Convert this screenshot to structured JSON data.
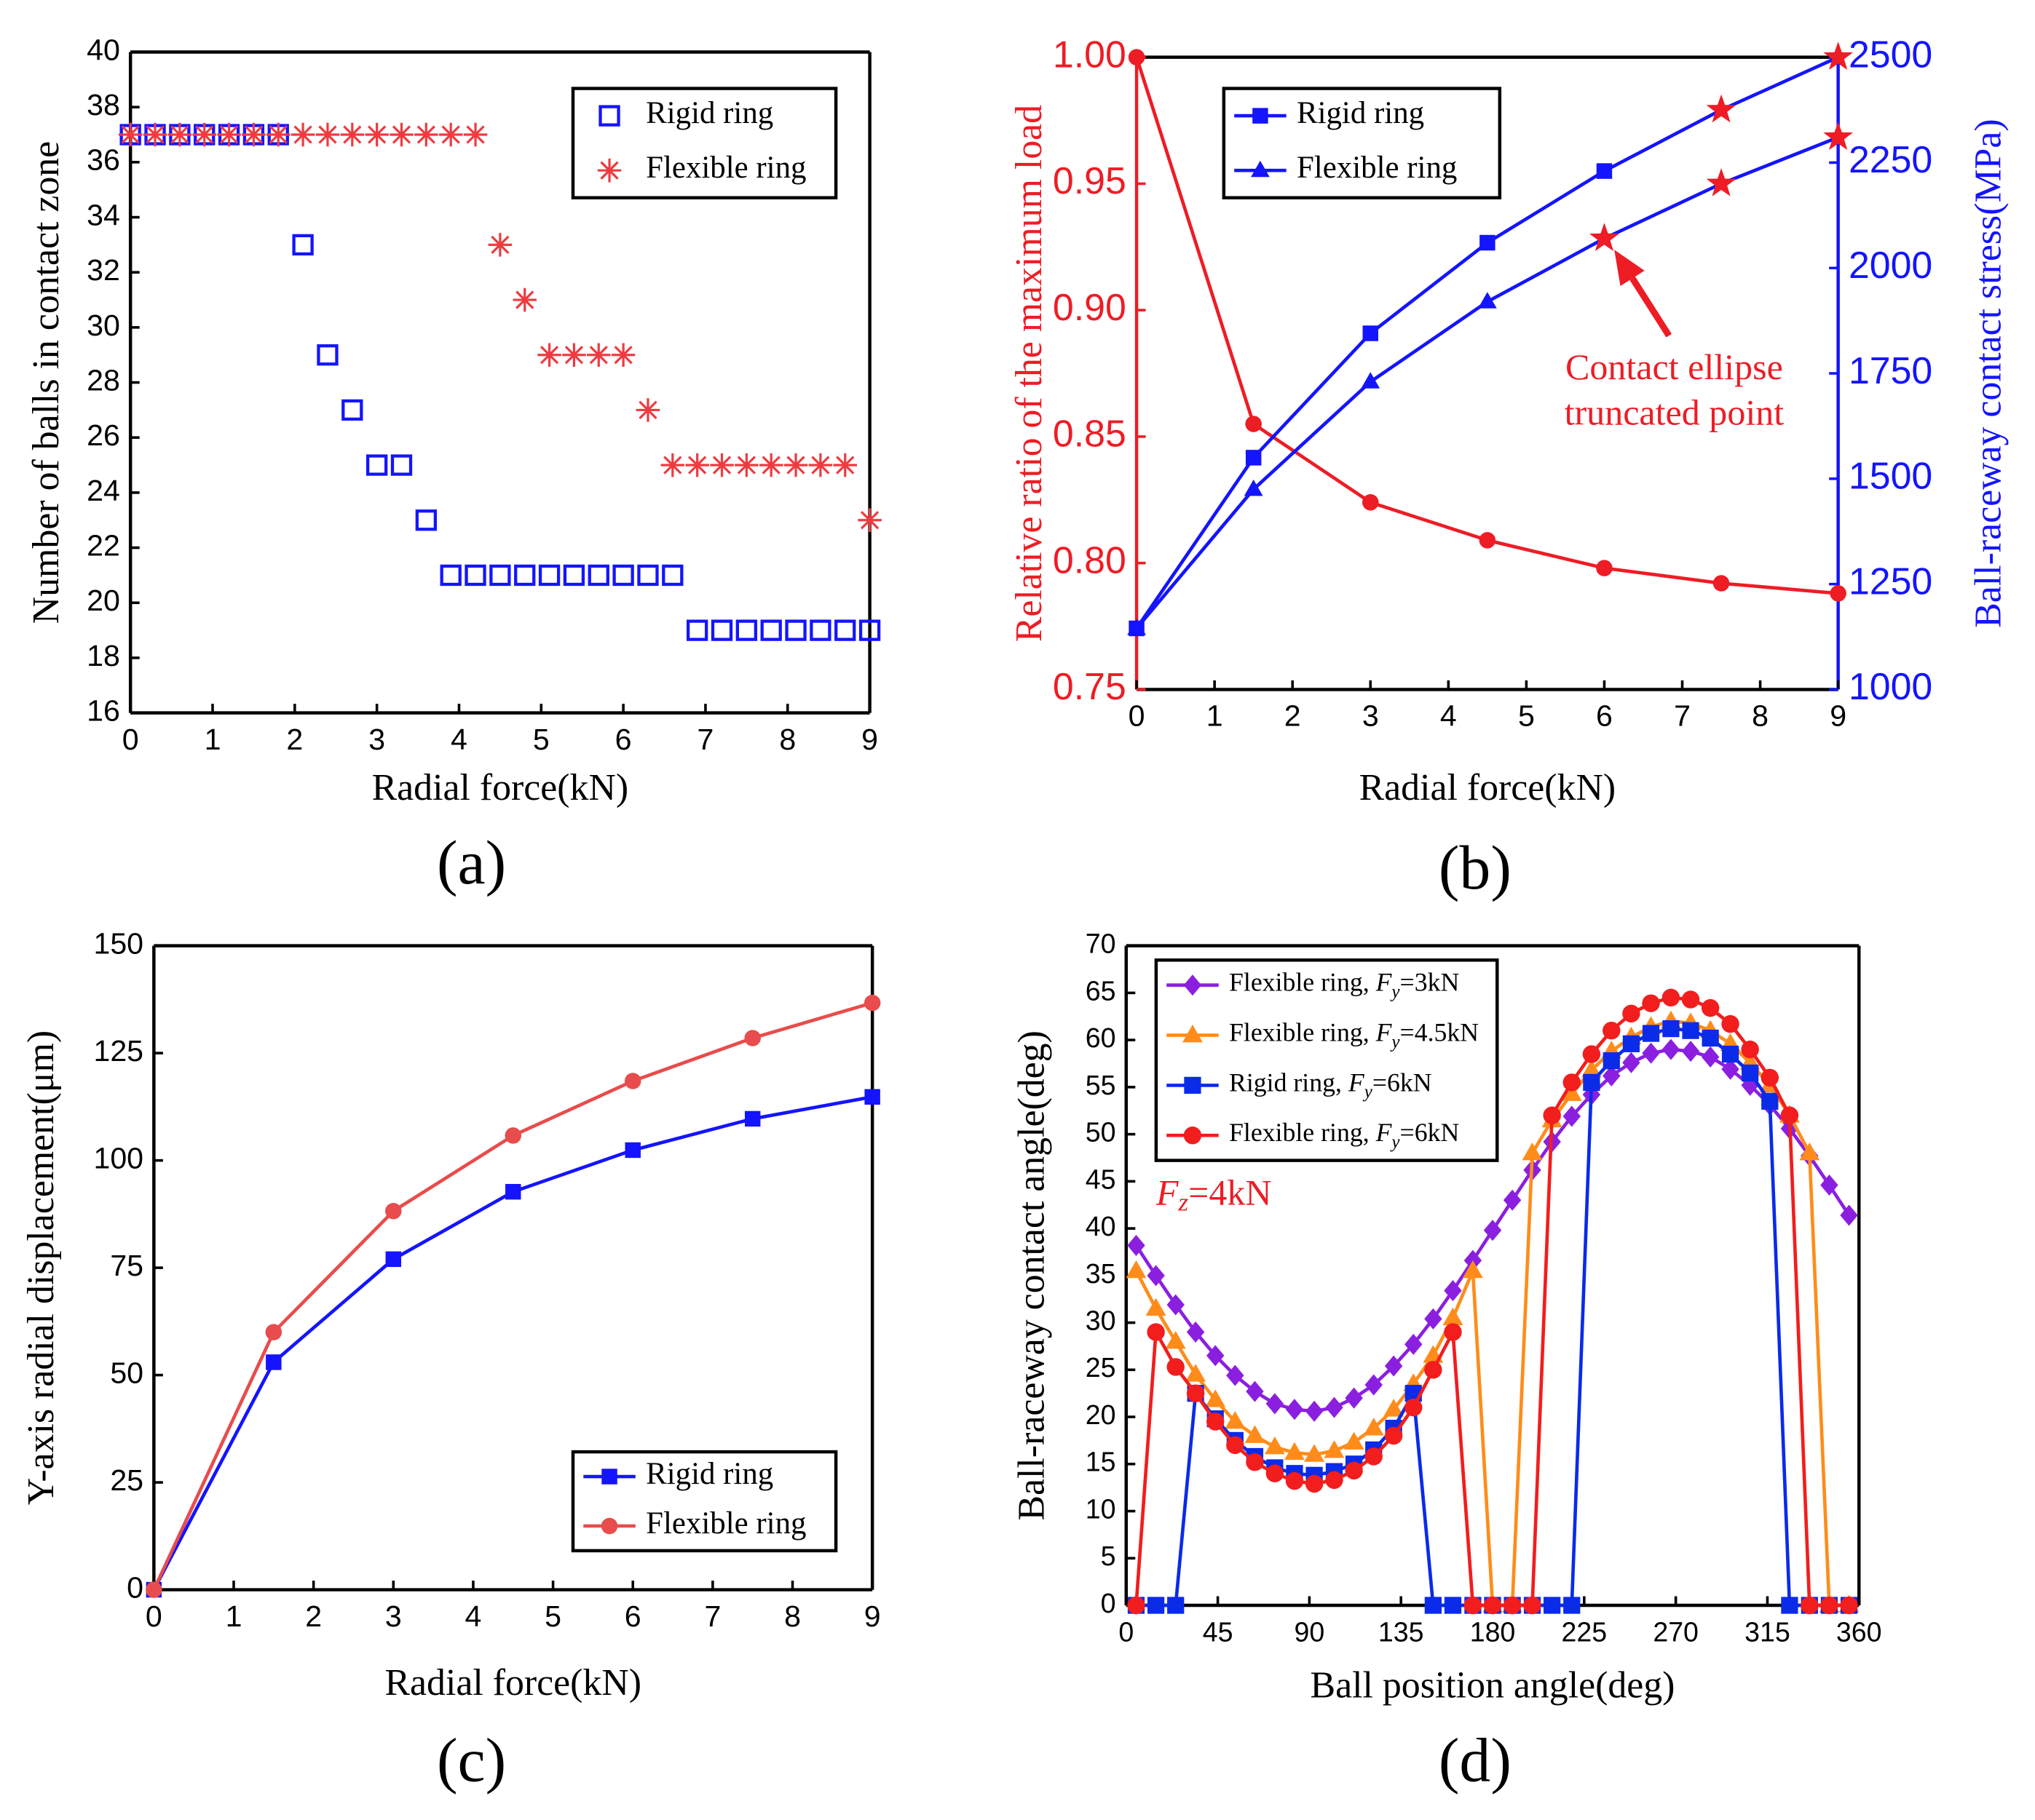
{
  "chart_data": [
    {
      "type": "scatter",
      "panel_label": "(a)",
      "xlabel": "Radial force(kN)",
      "ylabel": "Number of balls in contact zone",
      "xlim": [
        0,
        9
      ],
      "xticks": [
        0,
        1,
        2,
        3,
        4,
        5,
        6,
        7,
        8,
        9
      ],
      "ylim": [
        16,
        40
      ],
      "yticks": [
        16,
        18,
        20,
        22,
        24,
        26,
        28,
        30,
        32,
        34,
        36,
        38,
        40
      ],
      "legend": "top-right",
      "series": [
        {
          "name": "Rigid ring",
          "color": "#1414ff",
          "marker": "open-square",
          "x": [
            0,
            0.3,
            0.6,
            0.9,
            1.2,
            1.5,
            1.8,
            2.1,
            2.4,
            2.7,
            3.0,
            3.3,
            3.6,
            3.9,
            4.2,
            4.5,
            4.8,
            5.1,
            5.4,
            5.7,
            6.0,
            6.3,
            6.6,
            6.9,
            7.2,
            7.5,
            7.8,
            8.1,
            8.4,
            8.7,
            9.0
          ],
          "values": [
            37,
            37,
            37,
            37,
            37,
            37,
            37,
            33,
            29,
            27,
            25,
            25,
            23,
            21,
            21,
            21,
            21,
            21,
            21,
            21,
            21,
            21,
            21,
            19,
            19,
            19,
            19,
            19,
            19,
            19,
            19
          ]
        },
        {
          "name": "Flexible ring",
          "color": "#ee3b3f",
          "marker": "asterisk",
          "x": [
            0,
            0.3,
            0.6,
            0.9,
            1.2,
            1.5,
            1.8,
            2.1,
            2.4,
            2.7,
            3.0,
            3.3,
            3.6,
            3.9,
            4.2,
            4.5,
            4.8,
            5.1,
            5.4,
            5.7,
            6.0,
            6.3,
            6.6,
            6.9,
            7.2,
            7.5,
            7.8,
            8.1,
            8.4,
            8.7,
            9.0
          ],
          "values": [
            37,
            37,
            37,
            37,
            37,
            37,
            37,
            37,
            37,
            37,
            37,
            37,
            37,
            37,
            37,
            33,
            31,
            29,
            29,
            29,
            29,
            27,
            25,
            25,
            25,
            25,
            25,
            25,
            25,
            25,
            23
          ]
        }
      ]
    },
    {
      "type": "line",
      "panel_label": "(b)",
      "xlabel": "Radial force(kN)",
      "ylabel": "Relative ratio of the maximum load",
      "y2label": "Ball-raceway contact stress(MPa)",
      "y_color": "#ee1c25",
      "y2_color": "#1414ff",
      "highlight_color": "#ee1c25",
      "x": [
        0,
        1.5,
        3,
        4.5,
        6,
        7.5,
        9
      ],
      "xlim": [
        0,
        9
      ],
      "xticks": [
        0,
        1,
        2,
        3,
        4,
        5,
        6,
        7,
        8,
        9
      ],
      "ylim": [
        0.75,
        1.0
      ],
      "yticks": [
        {
          "value": 0.75,
          "label": "0.75"
        },
        {
          "value": 0.8,
          "label": "0.80"
        },
        {
          "value": 0.85,
          "label": "0.85"
        },
        {
          "value": 0.9,
          "label": "0.90"
        },
        {
          "value": 0.95,
          "label": "0.95"
        },
        {
          "value": 1.0,
          "label": "1.00"
        }
      ],
      "y2lim": [
        1000,
        2500
      ],
      "y2ticks": [
        1000,
        1250,
        1500,
        1750,
        2000,
        2250,
        2500
      ],
      "legend": "top-left",
      "annotation": [
        "Contact ellipse",
        "truncated point"
      ],
      "series": [
        {
          "color": "#ee1c25",
          "marker": "circle",
          "values": [
            1.0,
            0.855,
            0.824,
            0.809,
            0.798,
            0.792,
            0.788
          ]
        },
        {
          "name": "Rigid ring",
          "color": "#1414ff",
          "axis": "y2",
          "marker": "square",
          "markers": [
            "square",
            "square",
            "square",
            "square",
            "square",
            "star",
            "star"
          ],
          "values": [
            1145,
            1550,
            1845,
            2060,
            2230,
            2375,
            2500
          ]
        },
        {
          "name": "Flexible ring",
          "color": "#1414ff",
          "axis": "y2",
          "marker": "triangle",
          "markers": [
            "triangle",
            "triangle",
            "triangle",
            "triangle",
            "star",
            "star",
            "star"
          ],
          "values": [
            1145,
            1475,
            1730,
            1920,
            2070,
            2200,
            2310
          ]
        }
      ]
    },
    {
      "type": "line",
      "panel_label": "(c)",
      "xlabel": "Radial force(kN)",
      "ylabel": "Y-axis radial displacement(μm)",
      "x": [
        0,
        1.5,
        3,
        4.5,
        6,
        7.5,
        9
      ],
      "xlim": [
        0,
        9
      ],
      "xticks": [
        0,
        1,
        2,
        3,
        4,
        5,
        6,
        7,
        8,
        9
      ],
      "ylim": [
        0,
        150
      ],
      "yticks": [
        0,
        25,
        50,
        75,
        100,
        125,
        150
      ],
      "legend": "bottom-right",
      "series": [
        {
          "name": "Rigid ring",
          "color": "#1414ff",
          "marker": "square",
          "values": [
            0,
            53,
            77,
            92.7,
            102.4,
            109.7,
            114.8
          ]
        },
        {
          "name": "Flexible ring",
          "color": "#e84c4c",
          "marker": "circle",
          "values": [
            0,
            60,
            88.2,
            105.8,
            118.5,
            128.5,
            136.7
          ]
        }
      ]
    },
    {
      "type": "line",
      "panel_label": "(d)",
      "xlabel": "Ball position angle(deg)",
      "ylabel": "Ball-raceway contact angle(deg)",
      "x": [
        4.9,
        14.6,
        24.3,
        34.1,
        43.8,
        53.5,
        63.2,
        73.0,
        82.7,
        92.4,
        102.2,
        111.9,
        121.6,
        131.4,
        141.1,
        150.8,
        160.5,
        170.3,
        180.0,
        189.7,
        199.5,
        209.2,
        218.9,
        228.6,
        238.4,
        248.1,
        257.8,
        267.6,
        277.3,
        287.0,
        296.8,
        306.5,
        316.2,
        325.9,
        335.7,
        345.4,
        355.1
      ],
      "xlim": [
        0,
        360
      ],
      "xticks": [
        0,
        45,
        90,
        135,
        180,
        225,
        270,
        315,
        360
      ],
      "ylim": [
        0,
        70
      ],
      "yticks": [
        0,
        5,
        10,
        15,
        20,
        25,
        30,
        35,
        40,
        45,
        50,
        55,
        60,
        65,
        70
      ],
      "legend": "top-left",
      "annotation": "Fz=4kN",
      "annotation_color": "#ee1c25",
      "series": [
        {
          "name": "Flexible ring,  Fy=3kN",
          "color": "#8b1fe0",
          "marker": "diamond",
          "values": [
            38.2,
            35.0,
            31.9,
            29.0,
            26.5,
            24.4,
            22.7,
            21.4,
            20.8,
            20.6,
            21.0,
            22.0,
            23.4,
            25.4,
            27.7,
            30.4,
            33.4,
            36.6,
            39.8,
            43.0,
            46.2,
            49.2,
            51.9,
            54.2,
            56.2,
            57.6,
            58.6,
            59.0,
            58.8,
            58.2,
            56.9,
            55.2,
            53.1,
            50.6,
            47.7,
            44.6,
            41.4
          ]
        },
        {
          "name": "Flexible ring,  Fy=4.5kN",
          "color": "#ff8c1a",
          "marker": "triangle",
          "values": [
            35.5,
            31.5,
            28,
            24.5,
            21.8,
            19.5,
            18,
            16.8,
            16.2,
            16.0,
            16.4,
            17.3,
            18.8,
            20.8,
            23.5,
            26.5,
            30.5,
            35.5,
            0,
            0,
            48,
            51.5,
            54.3,
            56.8,
            58.8,
            60.3,
            61.4,
            62,
            61.8,
            61,
            59.6,
            57.6,
            55.2,
            52,
            48,
            0,
            0
          ]
        },
        {
          "name": "Rigid ring,  Fy=6kN",
          "color": "#0a2be8",
          "marker": "square",
          "values": [
            0,
            0,
            0,
            22.5,
            19.8,
            17.5,
            15.8,
            14.6,
            14.0,
            13.8,
            14.2,
            15.0,
            16.5,
            18.8,
            22.5,
            0,
            0,
            0,
            0,
            0,
            0,
            0,
            0,
            55.5,
            57.8,
            59.6,
            60.7,
            61.2,
            61,
            60.2,
            58.5,
            56.5,
            53.5,
            0,
            0,
            0,
            0
          ]
        },
        {
          "name": "Flexible ring,  Fy=6kN",
          "color": "#f21d1d",
          "marker": "circle",
          "values": [
            0,
            29,
            25.3,
            22.5,
            19.5,
            17,
            15.2,
            14,
            13.2,
            12.9,
            13.3,
            14.3,
            15.8,
            18,
            21,
            25,
            29,
            0,
            0,
            0,
            0,
            52,
            55.5,
            58.5,
            61,
            62.8,
            63.9,
            64.5,
            64.3,
            63.4,
            61.7,
            59,
            56,
            52,
            0,
            0,
            0
          ]
        }
      ]
    }
  ]
}
